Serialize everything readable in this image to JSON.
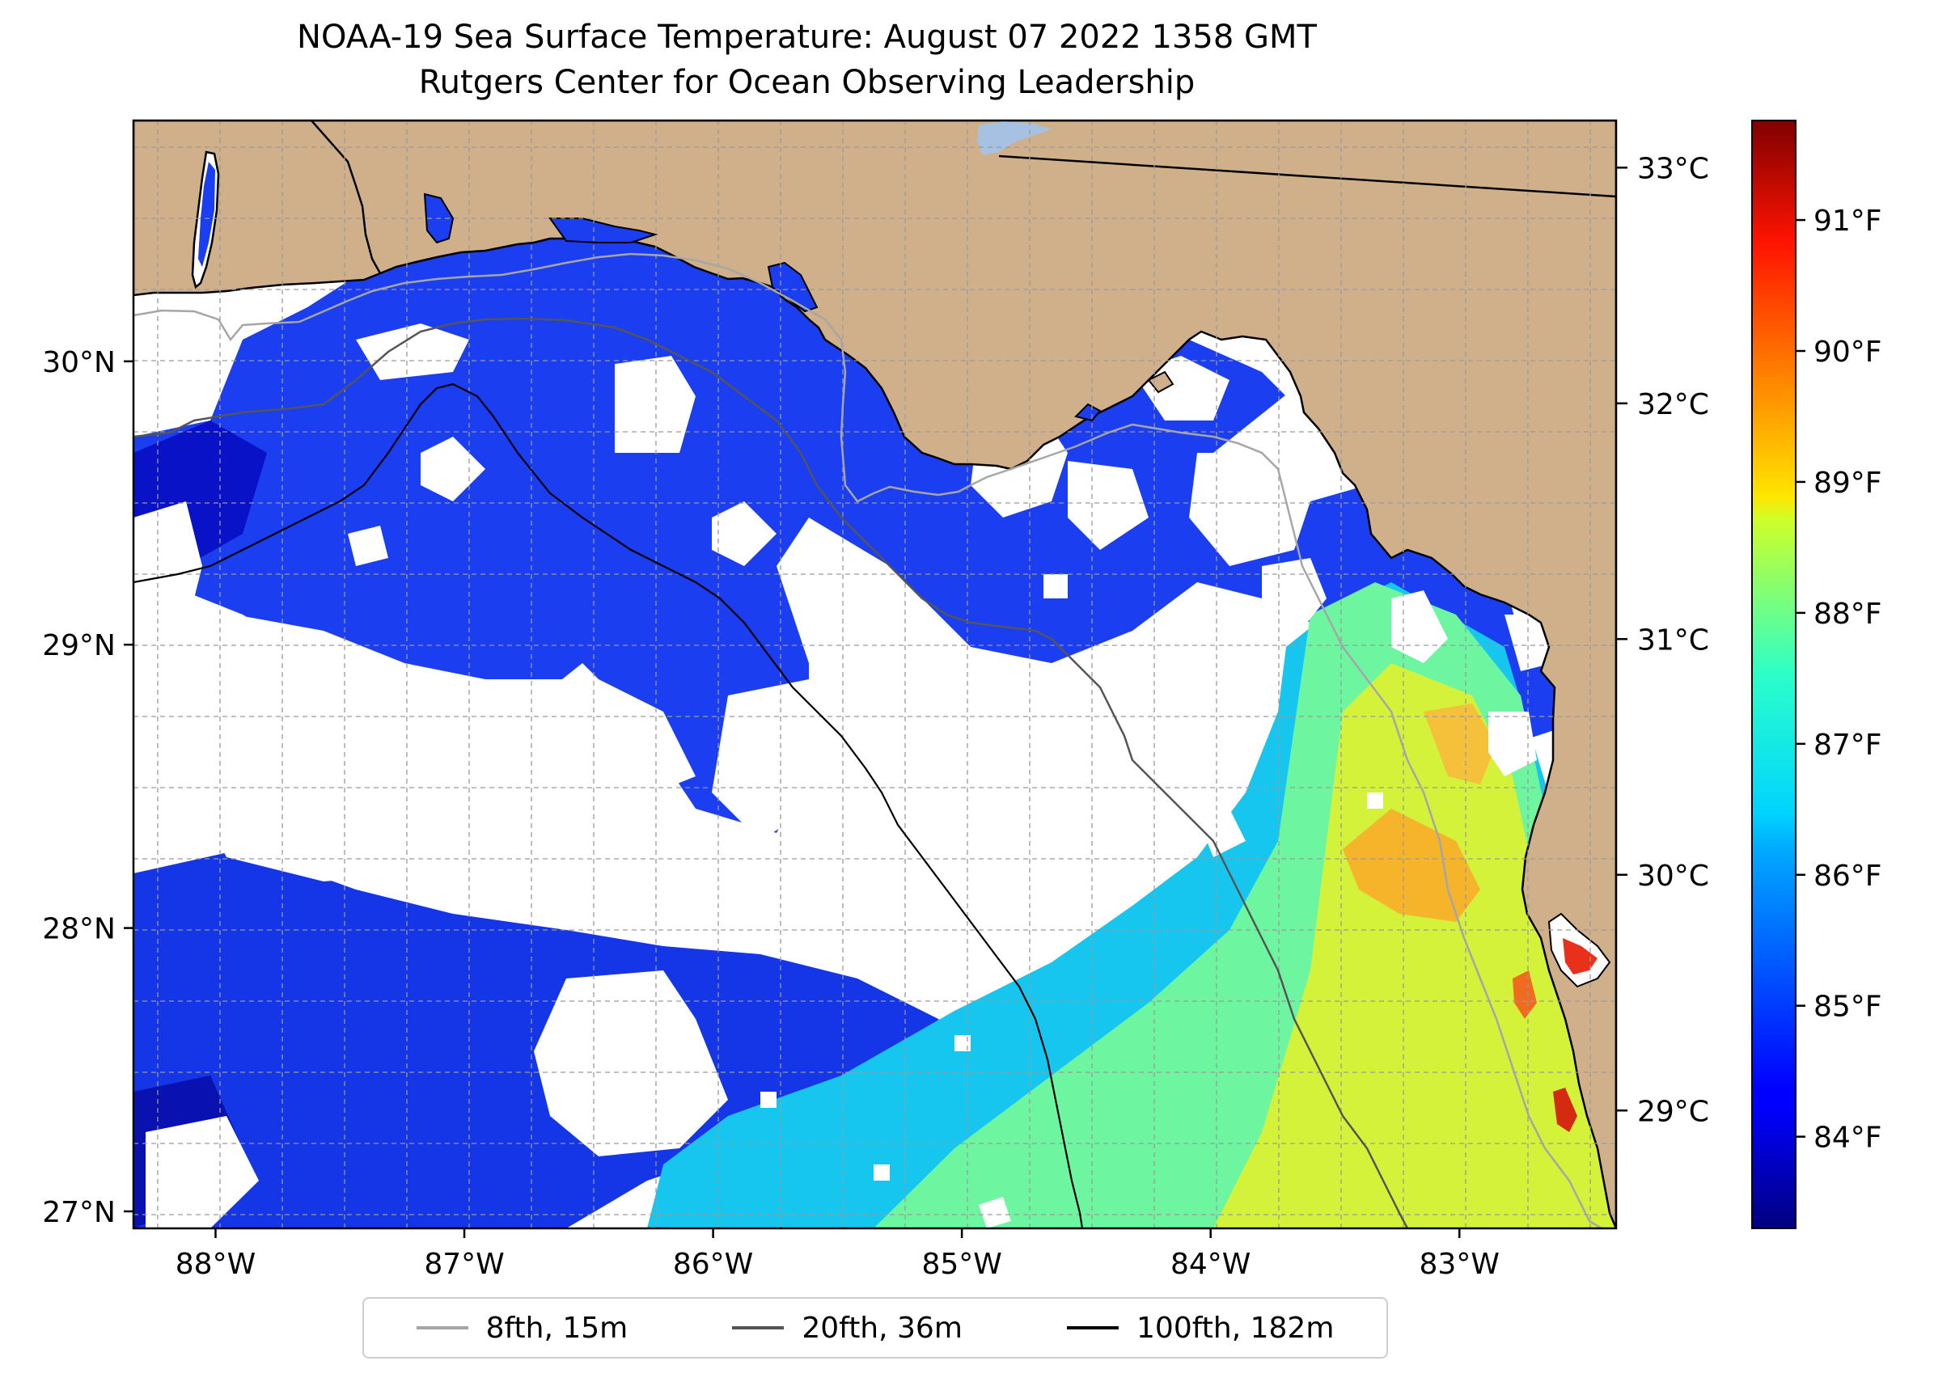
{
  "title": {
    "line1": "NOAA-19 Sea Surface Temperature: August 07 2022 1358 GMT",
    "line2": "Rutgers Center for Ocean Observing Leadership"
  },
  "map": {
    "lon_range": [
      -88.33,
      -82.37
    ],
    "lat_range": [
      26.94,
      30.85
    ],
    "land_color": "#cfb08a",
    "cloud_color": "#ffffff",
    "x_ticks": [
      {
        "value": -88,
        "label": "88°W"
      },
      {
        "value": -87,
        "label": "87°W"
      },
      {
        "value": -86,
        "label": "86°W"
      },
      {
        "value": -85,
        "label": "85°W"
      },
      {
        "value": -84,
        "label": "84°W"
      },
      {
        "value": -83,
        "label": "83°W"
      }
    ],
    "y_ticks": [
      {
        "value": 30,
        "label": "30°N"
      },
      {
        "value": 29,
        "label": "29°N"
      },
      {
        "value": 28,
        "label": "28°N"
      },
      {
        "value": 27,
        "label": "27°N"
      }
    ]
  },
  "colorbar": {
    "range_c": [
      28.5,
      33.2
    ],
    "celsius_ticks": [
      {
        "value": 33,
        "label": "33°C"
      },
      {
        "value": 32,
        "label": "32°C"
      },
      {
        "value": 31,
        "label": "31°C"
      },
      {
        "value": 30,
        "label": "30°C"
      },
      {
        "value": 29,
        "label": "29°C"
      }
    ],
    "fahrenheit_ticks": [
      {
        "value": 91,
        "label": "91°F"
      },
      {
        "value": 90,
        "label": "90°F"
      },
      {
        "value": 89,
        "label": "89°F"
      },
      {
        "value": 88,
        "label": "88°F"
      },
      {
        "value": 87,
        "label": "87°F"
      },
      {
        "value": 86,
        "label": "86°F"
      },
      {
        "value": 85,
        "label": "85°F"
      },
      {
        "value": 84,
        "label": "84°F"
      }
    ]
  },
  "legend": [
    {
      "label": "8fth, 15m",
      "color": "#a6a6a6"
    },
    {
      "label": "20fth, 36m",
      "color": "#555555"
    },
    {
      "label": "100fth, 182m",
      "color": "#000000"
    }
  ]
}
